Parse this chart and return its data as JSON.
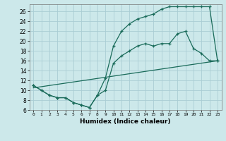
{
  "xlabel": "Humidex (Indice chaleur)",
  "bg_color": "#cce8ea",
  "line_color": "#1a6b5a",
  "grid_color": "#aacdd4",
  "xlim": [
    -0.5,
    23.5
  ],
  "ylim": [
    6,
    27.5
  ],
  "xticks": [
    0,
    1,
    2,
    3,
    4,
    5,
    6,
    7,
    8,
    9,
    10,
    11,
    12,
    13,
    14,
    15,
    16,
    17,
    18,
    19,
    20,
    21,
    22,
    23
  ],
  "yticks": [
    6,
    8,
    10,
    12,
    14,
    16,
    18,
    20,
    22,
    24,
    26
  ],
  "line1_x": [
    0,
    1,
    2,
    3,
    4,
    5,
    6,
    7,
    8,
    9,
    10,
    11,
    12,
    13,
    14,
    15,
    16,
    17,
    18,
    19,
    20,
    21,
    22,
    23
  ],
  "line1_y": [
    11,
    10,
    9,
    8.5,
    8.5,
    7.5,
    7,
    6.5,
    9,
    12.5,
    19,
    22,
    23.5,
    24.5,
    25,
    25.5,
    26.5,
    27,
    27,
    27,
    27,
    27,
    27,
    16
  ],
  "line2_x": [
    0,
    1,
    2,
    3,
    4,
    5,
    6,
    7,
    8,
    9,
    10,
    11,
    12,
    13,
    14,
    15,
    16,
    17,
    18,
    19,
    20,
    21,
    22,
    23
  ],
  "line2_y": [
    11,
    10,
    9,
    8.5,
    8.5,
    7.5,
    7,
    6.5,
    9,
    10,
    15.5,
    17,
    18,
    19,
    19.5,
    19,
    19.5,
    19.5,
    21.5,
    22,
    18.5,
    17.5,
    16,
    16
  ],
  "line3_x": [
    0,
    23
  ],
  "line3_y": [
    10.5,
    16
  ]
}
